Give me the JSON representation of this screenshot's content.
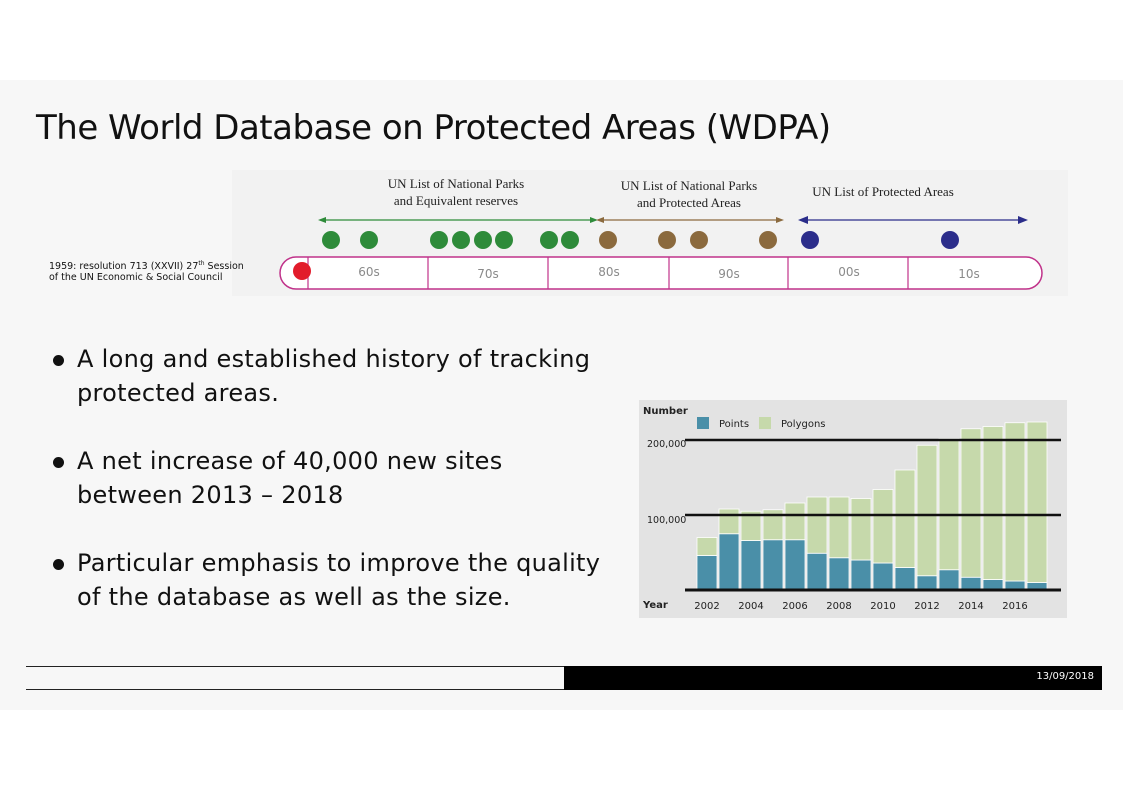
{
  "slide": {
    "title": "The World Database on Protected Areas (WDPA)",
    "date": "13/09/2018"
  },
  "timeline": {
    "resolution_note_main": "1959: resolution 713 (XXVII) 27",
    "resolution_note_sup": "th",
    "resolution_note_tail": " Session of the UN Economic & Social Council",
    "eras": [
      {
        "label": "UN List of National Parks\nand Equivalent reserves",
        "color": "#2e8b3a"
      },
      {
        "label": "UN List of National Parks\nand Protected Areas",
        "color": "#8b6a3e"
      },
      {
        "label": "UN List of Protected Areas",
        "color": "#2b2d8a"
      }
    ],
    "decades": [
      "60s",
      "70s",
      "80s",
      "90s",
      "00s",
      "10s"
    ],
    "colors": {
      "green": "#2e8b3a",
      "brown": "#8b6a3e",
      "navy": "#2b2d8a",
      "red": "#e21b2b",
      "frame": "#c0328a"
    }
  },
  "bullets": [
    "A long and established history of tracking protected areas.",
    "A net increase of 40,000 new sites between 2013 – 2018",
    "Particular emphasis to improve the quality of the database as well as the size."
  ],
  "chart_data": {
    "type": "bar",
    "stacked": true,
    "ylabel": "Number",
    "xlabel": "Year",
    "legend": [
      "Points",
      "Polygons"
    ],
    "legend_position": "top-left",
    "yticks": [
      "100,000",
      "200,000"
    ],
    "ytick_values": [
      100000,
      200000
    ],
    "xticks": [
      "2002",
      "2004",
      "2006",
      "2008",
      "2010",
      "2012",
      "2014",
      "2016"
    ],
    "ylim": [
      0,
      230000
    ],
    "x": [
      2002,
      2003,
      2004,
      2005,
      2006,
      2007,
      2008,
      2009,
      2010,
      2011,
      2012,
      2013,
      2014,
      2015,
      2016,
      2017
    ],
    "series": [
      {
        "name": "Points",
        "color": "#4a8fa8",
        "values": [
          46000,
          75000,
          66000,
          67000,
          67000,
          49000,
          43000,
          40000,
          36000,
          30000,
          19000,
          27000,
          17000,
          14000,
          12000,
          10000
        ]
      },
      {
        "name": "Polygons",
        "color": "#c6d9ab",
        "values": [
          24000,
          33000,
          39000,
          40000,
          49000,
          75000,
          81000,
          82000,
          98000,
          130000,
          174000,
          175000,
          198000,
          204000,
          211000,
          214000
        ]
      }
    ]
  }
}
